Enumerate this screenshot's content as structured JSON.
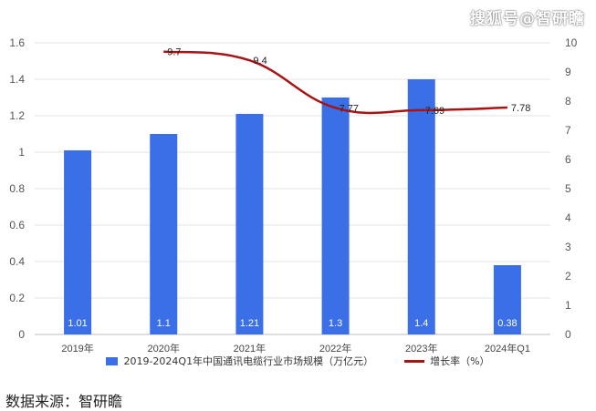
{
  "watermark": "搜狐号@智研瞻",
  "source": "数据来源：智研瞻",
  "chart_data": {
    "type": "bar",
    "categories": [
      "2019年",
      "2020年",
      "2021年",
      "2022年",
      "2023年",
      "2024年Q1"
    ],
    "series": [
      {
        "name": "2019-2024Q1年中国通讯电缆行业市场规模（万亿元）",
        "type": "bar",
        "axis": "left",
        "values": [
          1.01,
          1.1,
          1.21,
          1.3,
          1.4,
          0.38
        ],
        "labels": [
          "1.01",
          "1.1",
          "1.21",
          "1.3",
          "1.4",
          "0.38"
        ],
        "color": "#3a6fe8"
      },
      {
        "name": "增长率（%）",
        "type": "line",
        "axis": "right",
        "values": [
          null,
          9.7,
          9.4,
          7.77,
          7.69,
          7.78
        ],
        "labels": [
          "",
          "9.7",
          "9.4",
          "7.77",
          "7.69",
          "7.78"
        ],
        "color": "#a81414"
      }
    ],
    "left_axis": {
      "ylim": [
        0,
        1.6
      ],
      "ticks": [
        "0",
        "0.2",
        "0.4",
        "0.6",
        "0.8",
        "1",
        "1.2",
        "1.4",
        "1.6"
      ]
    },
    "right_axis": {
      "ylim": [
        0,
        10
      ],
      "ticks": [
        "0",
        "1",
        "2",
        "3",
        "4",
        "5",
        "6",
        "7",
        "8",
        "9",
        "10"
      ]
    },
    "grid": true,
    "legend_position": "bottom"
  }
}
